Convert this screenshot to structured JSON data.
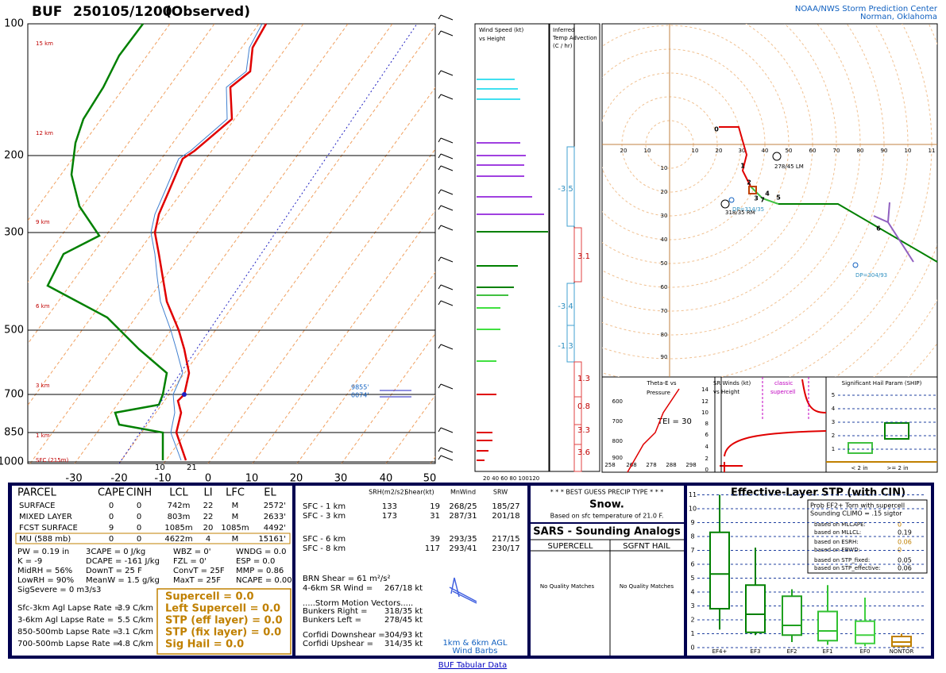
{
  "header": {
    "station": "BUF",
    "time": "250105/1200",
    "status": "(Observed)",
    "org": "NOAA/NWS Storm Prediction Center",
    "location": "Norman, Oklahoma"
  },
  "skewt": {
    "pressure_labels": [
      100,
      200,
      300,
      500,
      700,
      850,
      1000
    ],
    "height_labels": [
      "15 km",
      "12 km",
      "9 km",
      "6 km",
      "3 km",
      "1 km",
      "SFC (215m)"
    ],
    "temp_labels": [
      -30,
      -20,
      -10,
      0,
      10,
      20,
      30,
      40,
      50
    ],
    "surface_dewpoint": 10,
    "surface_temp": 21,
    "annotations": [
      "9855'",
      "0074'"
    ]
  },
  "wind_panel": {
    "title": [
      "Wind Speed (kt)",
      "vs Height"
    ],
    "axis": "20 40 60 80 100120"
  },
  "advection_panel": {
    "title": [
      "Inferred",
      "Temp Advection",
      "(C / hr)"
    ],
    "values": [
      -3.5,
      3.1,
      -3.4,
      -1.3,
      1.3,
      0.8,
      3.3,
      3.6
    ]
  },
  "hodograph": {
    "x_labels": [
      20,
      10,
      10,
      20,
      30,
      40,
      50,
      60,
      70,
      80,
      90,
      10,
      11
    ],
    "y_labels": [
      10,
      20,
      30,
      40,
      50,
      60,
      70,
      80,
      90
    ],
    "points": [
      0,
      1,
      2,
      3,
      4,
      5,
      6,
      7
    ],
    "annotations": [
      "278/45 LM",
      "318/35 RM",
      "DP=314/35",
      "DP=304/93"
    ]
  },
  "theta_panel": {
    "title": [
      "Theta-E vs",
      "Pressure"
    ],
    "y_labels": [
      600,
      700,
      800,
      900
    ],
    "x_labels": [
      258,
      268,
      278,
      288,
      298
    ],
    "tei": "TEI = 30"
  },
  "srwind_panel": {
    "title": [
      "SR Winds (kt)",
      "vs Height"
    ],
    "note": [
      "classic",
      "supercell"
    ],
    "y_labels": [
      14,
      12,
      10,
      8,
      6,
      4,
      2,
      0
    ]
  },
  "ship_panel": {
    "title": "Significant Hail Param (SHIP)",
    "y_labels": [
      5,
      4,
      3,
      2,
      1
    ],
    "x_labels": [
      "< 2 in",
      ">= 2 in"
    ]
  },
  "parcel_table": {
    "headers": [
      "PARCEL",
      "CAPE",
      "CINH",
      "LCL",
      "LI",
      "LFC",
      "EL"
    ],
    "rows": [
      [
        "SURFACE",
        0,
        0,
        "742m",
        22,
        "M",
        "2572'"
      ],
      [
        "MIXED LAYER",
        0,
        0,
        "803m",
        22,
        "M",
        "2633'"
      ],
      [
        "FCST SURFACE",
        9,
        0,
        "1085m",
        20,
        "1085m",
        "4492'"
      ],
      [
        "MU  (588 mb)",
        0,
        0,
        "4622m",
        4,
        "M",
        "15161'"
      ]
    ],
    "params": [
      [
        "PW = 0.19 in",
        "3CAPE = 0 J/kg",
        "WBZ = 0'",
        "WNDG = 0.0"
      ],
      [
        "K = -9",
        "DCAPE = -161 J/kg",
        "FZL = 0'",
        "ESP = 0.0"
      ],
      [
        "MidRH = 56%",
        "DownT = 25 F",
        "ConvT = 25F",
        "MMP = 0.86"
      ],
      [
        "LowRH = 90%",
        "MeanW = 1.5 g/kg",
        "MaxT = 25F",
        "NCAPE = 0.00"
      ],
      [
        "SigSevere = 0 m3/s3"
      ]
    ],
    "lapse_rates": [
      [
        "Sfc-3km Agl Lapse Rate =",
        "3.9 C/km"
      ],
      [
        "3-6km Agl Lapse Rate =",
        "5.5 C/km"
      ],
      [
        "850-500mb Lapse Rate =",
        "3.1 C/km"
      ],
      [
        "700-500mb Lapse Rate =",
        "4.8 C/km"
      ]
    ],
    "indices": [
      "Supercell = 0.0",
      "Left Supercell = 0.0",
      "STP (eff layer) = 0.0",
      "STP (fix layer) = 0.0",
      "Sig Hail = 0.0"
    ]
  },
  "shear_table": {
    "headers": [
      "SRH(m2/s2)",
      "Shear(kt)",
      "MnWind",
      "SRW"
    ],
    "rows": [
      {
        "layer": "SFC - 1 km",
        "srh": 133,
        "shear": 19,
        "mnwind": "268/25",
        "srw": "185/27"
      },
      {
        "layer": "SFC - 3 km",
        "srh": 173,
        "shear": 31,
        "mnwind": "287/31",
        "srw": "201/18"
      },
      {
        "layer": "SFC - 6 km",
        "shear": 39,
        "mnwind": "293/35",
        "srw": "217/15"
      },
      {
        "layer": "SFC - 8 km",
        "shear": 117,
        "mnwind": "293/41",
        "srw": "230/17"
      }
    ],
    "brn": [
      "BRN Shear =  61 m²/s²",
      "4-6km SR Wind =",
      "267/18 kt"
    ],
    "vectors_title": ".....Storm Motion Vectors.....",
    "vectors": [
      [
        "Bunkers Right =",
        "318/35 kt"
      ],
      [
        "Bunkers Left =",
        "278/45 kt"
      ],
      [
        "Corfidi Downshear =",
        "304/93 kt"
      ],
      [
        "Corfidi Upshear =",
        "314/35 kt"
      ]
    ],
    "barb_note": [
      "1km & 6km AGL",
      "Wind Barbs"
    ]
  },
  "precip": {
    "title": "* * * BEST GUESS PRECIP TYPE * * *",
    "type": "Snow.",
    "note": "Based on sfc temperature of 21.0 F."
  },
  "sars": {
    "title": "SARS - Sounding Analogs",
    "columns": [
      "SUPERCELL",
      "SGFNT HAIL"
    ],
    "results": [
      "No Quality Matches",
      "No Quality Matches"
    ]
  },
  "stp": {
    "title": "Effective-Layer STP (with CIN)",
    "prob": [
      "Prob EF2+ Torn with supercell",
      "Sounding CLIMO = .15 sigtor"
    ],
    "based": [
      [
        "based on MLCAPE:",
        0.0
      ],
      [
        "based on MLLCL:",
        0.19
      ],
      [
        "based on ESRH:",
        0.06
      ],
      [
        "based on EBWD:",
        0.0
      ],
      [
        "based on STP_fixed:",
        0.05
      ],
      [
        "based on STP_effective:",
        0.06
      ]
    ],
    "y_labels": [
      11,
      10,
      9,
      8,
      7,
      6,
      5,
      4,
      3,
      2,
      1,
      0
    ],
    "x_labels": [
      "EF4+",
      "EF3",
      "EF2",
      "EF1",
      "EF0",
      "NONTOR"
    ]
  },
  "footer": {
    "link": "BUF Tabular Data"
  }
}
